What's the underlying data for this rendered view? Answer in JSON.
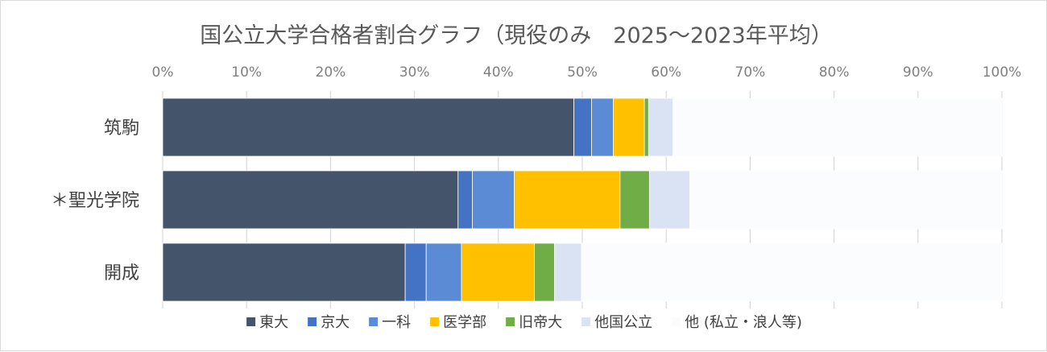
{
  "chart_data": {
    "type": "bar",
    "orientation": "horizontal",
    "stacked": true,
    "title": "国公立大学合格者割合グラフ（現役のみ　2025～2023年平均）",
    "categories": [
      "筑駒",
      "＊聖光学院",
      "開成"
    ],
    "x_ticks": [
      "0%",
      "10%",
      "20%",
      "30%",
      "40%",
      "50%",
      "60%",
      "70%",
      "80%",
      "90%",
      "100%"
    ],
    "xlim": [
      0,
      100
    ],
    "grid": true,
    "legend_position": "bottom",
    "series": [
      {
        "name": "東大",
        "color": "#44546a",
        "values": [
          49.0,
          35.2,
          28.9
        ]
      },
      {
        "name": "京大",
        "color": "#4472c4",
        "values": [
          2.1,
          1.7,
          2.5
        ]
      },
      {
        "name": "一科",
        "color": "#5b8bd5",
        "values": [
          2.6,
          5.0,
          4.2
        ]
      },
      {
        "name": "医学部",
        "color": "#ffc000",
        "values": [
          3.7,
          12.6,
          8.7
        ]
      },
      {
        "name": "旧帝大",
        "color": "#70ad47",
        "values": [
          0.5,
          3.5,
          2.4
        ]
      },
      {
        "name": "他国公立",
        "color": "#dae3f3",
        "values": [
          2.9,
          4.8,
          3.2
        ]
      },
      {
        "name": "他 (私立・浪人等)",
        "color": "#fbfcfe",
        "values": [
          39.2,
          37.2,
          50.1
        ]
      }
    ]
  }
}
